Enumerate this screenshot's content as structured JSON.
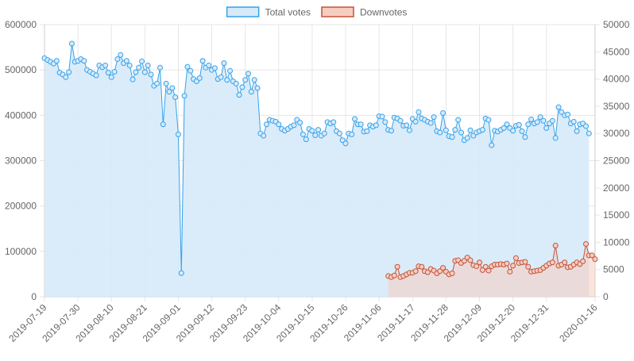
{
  "chart_data": {
    "type": "area",
    "legend_position": "top",
    "grid": true,
    "colors": {
      "total_line": "#36a2eb",
      "total_fill": "#d6eaf9",
      "down_line": "#c0543c",
      "down_fill": "#f8cdbf",
      "grid": "#e6e6e6",
      "axis_text": "#666666"
    },
    "legend": [
      {
        "label": "Total votes",
        "series": "total"
      },
      {
        "label": "Downvotes",
        "series": "downvotes"
      }
    ],
    "x_start": "2019-07-19",
    "x_end": "2020-01-16",
    "x_ticks": [
      "2019-07-19",
      "2019-07-30",
      "2019-08-10",
      "2019-08-21",
      "2019-09-01",
      "2019-09-12",
      "2019-09-23",
      "2019-10-04",
      "2019-10-15",
      "2019-10-26",
      "2019-11-06",
      "2019-11-17",
      "2019-11-28",
      "2019-12-09",
      "2019-12-20",
      "2019-12-31",
      "2020-01-16"
    ],
    "y_left": {
      "min": 0,
      "max": 600000,
      "ticks": [
        "0",
        "100000",
        "200000",
        "300000",
        "400000",
        "500000",
        "600000"
      ]
    },
    "y_right": {
      "min": 0,
      "max": 50000,
      "ticks": [
        "0",
        "5000",
        "10000",
        "15000",
        "20000",
        "25000",
        "30000",
        "35000",
        "40000",
        "45000",
        "50000"
      ]
    },
    "series": [
      {
        "key": "total",
        "name": "Total votes",
        "axis": "left",
        "x_start": "2019-07-19",
        "step_days": 1,
        "values": [
          526000,
          522000,
          518000,
          514000,
          520000,
          494000,
          490000,
          484000,
          495000,
          558000,
          518000,
          520000,
          524000,
          520000,
          500000,
          496000,
          492000,
          488000,
          510000,
          506000,
          510000,
          494000,
          484000,
          496000,
          524000,
          533000,
          515000,
          520000,
          510000,
          479000,
          495000,
          505000,
          519000,
          495000,
          510000,
          490000,
          465000,
          470000,
          505000,
          380000,
          470000,
          452000,
          460000,
          440000,
          358000,
          52000,
          443000,
          507000,
          498000,
          480000,
          475000,
          482000,
          520000,
          505000,
          510000,
          500000,
          504000,
          480000,
          484000,
          515000,
          478000,
          498000,
          475000,
          470000,
          445000,
          462000,
          478000,
          492000,
          452000,
          478000,
          460000,
          360000,
          355000,
          380000,
          390000,
          388000,
          386000,
          380000,
          370000,
          366000,
          370000,
          375000,
          378000,
          390000,
          384000,
          358000,
          347000,
          370000,
          366000,
          356000,
          368000,
          355000,
          360000,
          385000,
          382000,
          385000,
          365000,
          360000,
          345000,
          338000,
          360000,
          358000,
          392000,
          380000,
          380000,
          364000,
          365000,
          378000,
          375000,
          378000,
          398000,
          397000,
          385000,
          368000,
          366000,
          395000,
          393000,
          388000,
          377000,
          378000,
          367000,
          392000,
          386000,
          407000,
          393000,
          390000,
          386000,
          383000,
          396000,
          365000,
          362000,
          405000,
          367000,
          354000,
          352000,
          368000,
          390000,
          362000,
          345000,
          350000,
          367000,
          355000,
          362000,
          365000,
          368000,
          393000,
          390000,
          334000,
          366000,
          364000,
          368000,
          372000,
          380000,
          372000,
          366000,
          377000,
          379000,
          365000,
          352000,
          380000,
          391000,
          382000,
          385000,
          396000,
          388000,
          372000,
          382000,
          388000,
          350000,
          418000,
          407000,
          400000,
          402000,
          382000,
          386000,
          365000,
          380000,
          382000,
          376000,
          360000
        ]
      },
      {
        "key": "downvotes",
        "name": "Downvotes",
        "axis": "right",
        "x_start": "2019-11-09",
        "step_days": 1,
        "values": [
          3800,
          3600,
          3900,
          5500,
          3600,
          3800,
          4100,
          4400,
          4400,
          4700,
          5600,
          5500,
          4700,
          4500,
          5100,
          4800,
          4300,
          4700,
          5300,
          4600,
          4100,
          4300,
          6600,
          6700,
          6200,
          6600,
          7200,
          6700,
          5800,
          5600,
          6300,
          4900,
          5500,
          4800,
          5600,
          5900,
          5900,
          6000,
          5900,
          6100,
          4600,
          5700,
          7100,
          6200,
          6300,
          6400,
          5500,
          4600,
          4700,
          4800,
          4900,
          5300,
          5700,
          6100,
          6300,
          9400,
          5700,
          5900,
          6300,
          5400,
          5500,
          5900,
          6300,
          6000,
          6500,
          9700,
          7600,
          7600,
          6900
        ]
      }
    ]
  }
}
